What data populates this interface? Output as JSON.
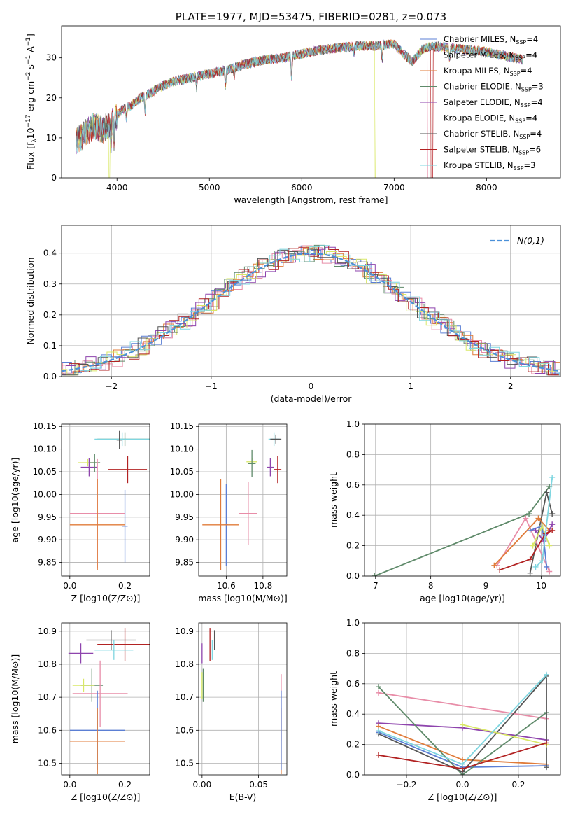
{
  "chart_data": [
    {
      "id": "spectrum",
      "type": "line",
      "title": "PLATE=1977, MJD=53475, FIBERID=0281, z=0.073",
      "xlabel": "wavelength [Angstrom, rest frame]",
      "ylabel": "Flux [f_λ 10^-17 erg cm^-2 s^-1 A^-1]",
      "xlim": [
        3400,
        8800
      ],
      "ylim": [
        0,
        38
      ],
      "xticks": [
        4000,
        5000,
        6000,
        7000,
        8000
      ],
      "yticks": [
        0,
        10,
        20,
        30
      ],
      "legend_position": "right",
      "grid": false,
      "series": [
        {
          "name": "Chabrier MILES, N_SSP=4",
          "color": "#5b7fd4"
        },
        {
          "name": "Salpeter MILES, N_SSP=4",
          "color": "#e88da8"
        },
        {
          "name": "Kroupa MILES, N_SSP=4",
          "color": "#e07b39"
        },
        {
          "name": "Chabrier ELODIE, N_SSP=3",
          "color": "#5f8a6a"
        },
        {
          "name": "Salpeter ELODIE, N_SSP=4",
          "color": "#8e44ad"
        },
        {
          "name": "Kroupa ELODIE, N_SSP=4",
          "color": "#d9e866"
        },
        {
          "name": "Chabrier STELIB, N_SSP=4",
          "color": "#555555"
        },
        {
          "name": "Salpeter STELIB, N_SSP=6",
          "color": "#b22222"
        },
        {
          "name": "Kroupa STELIB, N_SSP=3",
          "color": "#7fd6e0"
        }
      ],
      "continuum": {
        "x": [
          3550,
          3650,
          3750,
          3850,
          3950,
          4050,
          4150,
          4250,
          4350,
          4450,
          4600,
          4800,
          5000,
          5200,
          5400,
          5600,
          5800,
          6000,
          6200,
          6400,
          6600,
          6800,
          7000,
          7100,
          7200,
          7300,
          7400,
          7600,
          7800,
          8000,
          8200,
          8400
        ],
        "y": [
          9,
          11,
          13,
          12,
          14,
          17,
          18,
          20,
          21,
          22.5,
          24,
          25,
          26,
          27,
          28.5,
          29.5,
          30,
          31,
          32,
          32.5,
          33,
          33,
          33.5,
          31,
          29,
          32,
          33,
          32.5,
          32,
          31.5,
          30.5,
          29.5
        ]
      }
    },
    {
      "id": "residuals",
      "type": "histogram",
      "xlabel": "(data-model)/error",
      "ylabel": "Normed distribution",
      "xlim": [
        -2.5,
        2.5
      ],
      "ylim": [
        0,
        0.49
      ],
      "xticks": [
        -2,
        -1,
        0,
        1,
        2
      ],
      "yticks": [
        0.0,
        0.1,
        0.2,
        0.3,
        0.4
      ],
      "grid": true,
      "legend": "N(0,1)",
      "legend_position": "top-right",
      "bin_width": 0.1,
      "reference_curve": {
        "type": "normal",
        "mean": 0,
        "sigma": 1,
        "color": "#4a90d9"
      }
    },
    {
      "id": "age-vs-Z",
      "type": "scatter",
      "xlabel": "Z [log10(Z/Z⊙)]",
      "ylabel": "age [log10(age/yr)]",
      "xlim": [
        -0.03,
        0.29
      ],
      "ylim": [
        9.82,
        10.155
      ],
      "xticks": [
        0.0,
        0.2
      ],
      "yticks": [
        9.85,
        9.9,
        9.95,
        10.0,
        10.05,
        10.1,
        10.15
      ],
      "grid": true,
      "points": [
        {
          "x": 0.2,
          "xerr": 0.1,
          "y": 10.122,
          "yerr": 0.015,
          "color": "#5f8a6a"
        },
        {
          "x": 0.19,
          "xerr": 0.1,
          "y": 10.122,
          "yerr": 0.015,
          "color": "#7fd6e0"
        },
        {
          "x": 0.21,
          "xerr": 0.07,
          "y": 10.055,
          "yerr": 0.03,
          "color": "#b22222"
        },
        {
          "x": 0.065,
          "xerr": 0.035,
          "y": 10.07,
          "yerr": 0.008,
          "color": "#d9e866"
        },
        {
          "x": 0.07,
          "xerr": 0.03,
          "y": 10.06,
          "yerr": 0.02,
          "color": "#8e44ad"
        },
        {
          "x": 0.09,
          "xerr": 0.02,
          "y": 10.07,
          "yerr": 0.02,
          "color": "#5f8a6a"
        },
        {
          "x": 0.18,
          "xerr": 0.01,
          "y": 10.12,
          "yerr": 0.02,
          "color": "#555555"
        },
        {
          "x": 0.2,
          "xerr": 0.01,
          "y": 9.93,
          "yerr": 0.08,
          "color": "#5b7fd4"
        },
        {
          "x": 0.1,
          "xerr": 0.1,
          "y": 9.958,
          "yerr": 0.12,
          "color": "#e88da8"
        },
        {
          "x": 0.1,
          "xerr": 0.1,
          "y": 9.933,
          "yerr": 0.1,
          "color": "#e07b39"
        }
      ]
    },
    {
      "id": "age-vs-mass",
      "type": "scatter",
      "xlabel": "mass [log10(M/M⊙)]",
      "ylabel": "",
      "xlim": [
        10.45,
        10.93
      ],
      "ylim": [
        9.82,
        10.155
      ],
      "xticks": [
        10.6,
        10.8
      ],
      "yticks": [
        9.85,
        9.9,
        9.95,
        10.0,
        10.05,
        10.1,
        10.15
      ],
      "grid": true,
      "points": [
        {
          "x": 10.86,
          "xerr": 0.03,
          "y": 10.122,
          "yerr": 0.015,
          "color": "#7fd6e0"
        },
        {
          "x": 10.87,
          "xerr": 0.03,
          "y": 10.122,
          "yerr": 0.01,
          "color": "#555555"
        },
        {
          "x": 10.88,
          "xerr": 0.02,
          "y": 10.055,
          "yerr": 0.03,
          "color": "#b22222"
        },
        {
          "x": 10.84,
          "xerr": 0.02,
          "y": 10.06,
          "yerr": 0.02,
          "color": "#8e44ad"
        },
        {
          "x": 10.74,
          "xerr": 0.03,
          "y": 10.072,
          "yerr": 0.008,
          "color": "#d9e866"
        },
        {
          "x": 10.74,
          "xerr": 0.02,
          "y": 10.068,
          "yerr": 0.03,
          "color": "#5f8a6a"
        },
        {
          "x": 10.6,
          "xerr": 0.01,
          "y": 9.933,
          "yerr": 0.09,
          "color": "#5b7fd4"
        },
        {
          "x": 10.72,
          "xerr": 0.05,
          "y": 9.958,
          "yerr": 0.07,
          "color": "#e88da8"
        },
        {
          "x": 10.57,
          "xerr": 0.1,
          "y": 9.933,
          "yerr": 0.1,
          "color": "#e07b39"
        }
      ]
    },
    {
      "id": "mass-weight-vs-age",
      "type": "line",
      "xlabel": "age [log10(age/yr)]",
      "ylabel": "mass weight",
      "xlim": [
        6.8,
        10.35
      ],
      "ylim": [
        0,
        1.0
      ],
      "xticks": [
        7,
        8,
        9,
        10
      ],
      "yticks": [
        0.0,
        0.2,
        0.4,
        0.6,
        0.8,
        1.0
      ],
      "grid": true,
      "series": [
        {
          "color": "#5f8a6a",
          "x": [
            6.98,
            9.78,
            10.15
          ],
          "y": [
            0.0,
            0.41,
            0.59
          ]
        },
        {
          "color": "#555555",
          "x": [
            9.8,
            10.1,
            10.2
          ],
          "y": [
            0.02,
            0.55,
            0.41
          ]
        },
        {
          "color": "#e88da8",
          "x": [
            9.2,
            9.72,
            10.15
          ],
          "y": [
            0.07,
            0.38,
            0.03
          ]
        },
        {
          "color": "#e07b39",
          "x": [
            9.15,
            9.95,
            10.15
          ],
          "y": [
            0.07,
            0.38,
            0.3
          ]
        },
        {
          "color": "#5b7fd4",
          "x": [
            9.8,
            10.02,
            10.1
          ],
          "y": [
            0.3,
            0.33,
            0.06
          ]
        },
        {
          "color": "#8e44ad",
          "x": [
            9.9,
            10.05,
            10.2
          ],
          "y": [
            0.3,
            0.23,
            0.34
          ]
        },
        {
          "color": "#d9e866",
          "x": [
            9.85,
            10.02,
            10.15
          ],
          "y": [
            0.2,
            0.33,
            0.2
          ]
        },
        {
          "color": "#b22222",
          "x": [
            9.25,
            9.8,
            10.08,
            10.2
          ],
          "y": [
            0.04,
            0.11,
            0.28,
            0.3
          ]
        },
        {
          "color": "#7fd6e0",
          "x": [
            9.9,
            10.02,
            10.2
          ],
          "y": [
            0.06,
            0.1,
            0.65
          ]
        }
      ]
    },
    {
      "id": "mass-vs-Z",
      "type": "scatter",
      "xlabel": "Z [log10(Z/Z⊙)]",
      "ylabel": "mass [log10(M/M⊙)]",
      "xlim": [
        -0.03,
        0.29
      ],
      "ylim": [
        10.465,
        10.925
      ],
      "xticks": [
        0.0,
        0.2
      ],
      "yticks": [
        10.5,
        10.6,
        10.7,
        10.8,
        10.9
      ],
      "grid": true,
      "points": [
        {
          "x": 0.15,
          "xerr": 0.09,
          "y": 10.873,
          "yerr": 0.03,
          "color": "#555555"
        },
        {
          "x": 0.2,
          "xerr": 0.1,
          "y": 10.86,
          "yerr": 0.05,
          "color": "#b22222"
        },
        {
          "x": 0.16,
          "xerr": 0.07,
          "y": 10.843,
          "yerr": 0.03,
          "color": "#7fd6e0"
        },
        {
          "x": 0.04,
          "xerr": 0.045,
          "y": 10.833,
          "yerr": 0.03,
          "color": "#8e44ad"
        },
        {
          "x": 0.08,
          "xerr": 0.04,
          "y": 10.736,
          "yerr": 0.05,
          "color": "#5f8a6a"
        },
        {
          "x": 0.05,
          "xerr": 0.04,
          "y": 10.736,
          "yerr": 0.02,
          "color": "#d9e866"
        },
        {
          "x": 0.11,
          "xerr": 0.1,
          "y": 10.711,
          "yerr": 0.1,
          "color": "#e88da8"
        },
        {
          "x": 0.1,
          "xerr": 0.1,
          "y": 10.6,
          "yerr": 0.12,
          "color": "#5b7fd4"
        },
        {
          "x": 0.1,
          "xerr": 0.1,
          "y": 10.567,
          "yerr": 0.1,
          "color": "#e07b39"
        }
      ]
    },
    {
      "id": "mass-vs-EBV",
      "type": "scatter",
      "xlabel": "E(B-V)",
      "ylabel": "",
      "xlim": [
        -0.003,
        0.075
      ],
      "ylim": [
        10.465,
        10.925
      ],
      "xticks": [
        0.0,
        0.05
      ],
      "yticks": [
        10.5,
        10.6,
        10.7,
        10.8,
        10.9
      ],
      "grid": true,
      "points": [
        {
          "x": 0.0,
          "y": 10.833,
          "yerr": 0.03,
          "color": "#8e44ad"
        },
        {
          "x": 0.0,
          "y": 10.736,
          "yerr": 0.04,
          "color": "#d9e866"
        },
        {
          "x": 0.001,
          "y": 10.736,
          "yerr": 0.05,
          "color": "#5f8a6a"
        },
        {
          "x": 0.007,
          "y": 10.86,
          "yerr": 0.05,
          "color": "#b22222"
        },
        {
          "x": 0.009,
          "y": 10.843,
          "yerr": 0.03,
          "color": "#7fd6e0"
        },
        {
          "x": 0.011,
          "y": 10.873,
          "yerr": 0.03,
          "color": "#555555"
        },
        {
          "x": 0.07,
          "y": 10.67,
          "yerr": 0.1,
          "color": "#e88da8"
        },
        {
          "x": 0.07,
          "y": 10.567,
          "yerr": 0.1,
          "color": "#e07b39"
        },
        {
          "x": 0.07,
          "y": 10.6,
          "yerr": 0.12,
          "color": "#5b7fd4"
        }
      ]
    },
    {
      "id": "mass-weight-vs-Z",
      "type": "line",
      "xlabel": "Z [log10(Z/Z⊙)]",
      "ylabel": "mass weight",
      "xlim": [
        -0.35,
        0.35
      ],
      "ylim": [
        0,
        1.0
      ],
      "xticks": [
        -0.2,
        0.0,
        0.2
      ],
      "yticks": [
        0.0,
        0.2,
        0.4,
        0.6,
        0.8,
        1.0
      ],
      "grid": true,
      "series": [
        {
          "color": "#e88da8",
          "x": [
            -0.3,
            0.3
          ],
          "y": [
            0.54,
            0.37
          ]
        },
        {
          "color": "#8e44ad",
          "x": [
            -0.3,
            0.0,
            0.3
          ],
          "y": [
            0.34,
            0.31,
            0.23
          ]
        },
        {
          "color": "#e07b39",
          "x": [
            -0.3,
            0.0,
            0.3
          ],
          "y": [
            0.32,
            0.1,
            0.07
          ]
        },
        {
          "color": "#5b7fd4",
          "x": [
            -0.3,
            0.0,
            0.3
          ],
          "y": [
            0.28,
            0.05,
            0.06
          ]
        },
        {
          "color": "#5f8a6a",
          "x": [
            -0.3,
            0.0,
            0.3
          ],
          "y": [
            0.58,
            0.0,
            0.41
          ]
        },
        {
          "color": "#555555",
          "x": [
            -0.3,
            0.0,
            0.3,
            0.3
          ],
          "y": [
            0.27,
            0.02,
            0.65,
            0.05
          ]
        },
        {
          "color": "#d9e866",
          "x": [
            0.0,
            0.3
          ],
          "y": [
            0.33,
            0.2
          ]
        },
        {
          "color": "#b22222",
          "x": [
            -0.3,
            0.0,
            0.3
          ],
          "y": [
            0.13,
            0.04,
            0.21
          ]
        },
        {
          "color": "#7fd6e0",
          "x": [
            -0.3,
            0.0,
            0.3
          ],
          "y": [
            0.29,
            0.07,
            0.66
          ]
        }
      ]
    }
  ]
}
